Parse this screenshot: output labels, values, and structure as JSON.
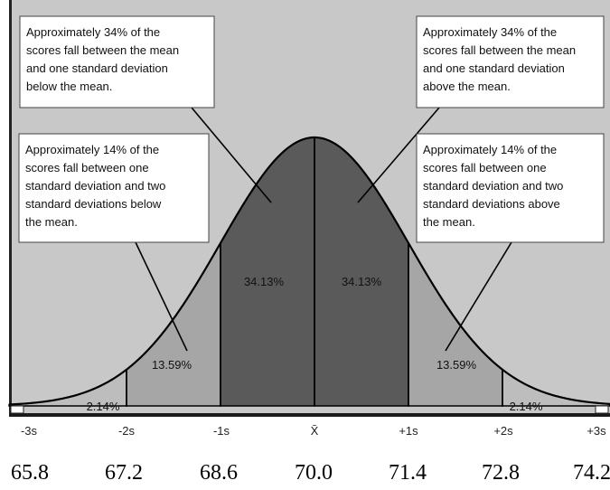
{
  "colors": {
    "panel_background": "#c8c8c8",
    "band_1s": "#5a5a5a",
    "band_2s": "#a6a6a6",
    "band_3s": "#bdbdbd",
    "curve": "#000000",
    "callout_fill": "#ffffff"
  },
  "chart_data": {
    "type": "area",
    "distribution": "normal",
    "mean": 70.0,
    "standard_deviation": 1.4,
    "xlim": [
      -3,
      3
    ],
    "x_ticks": [
      "-3s",
      "-2s",
      "-1s",
      "X̄",
      "+1s",
      "+2s",
      "+3s"
    ],
    "scores": [
      "65.8",
      "67.2",
      "68.6",
      "70.0",
      "71.4",
      "72.8",
      "74.2"
    ],
    "bands": [
      {
        "from": -3,
        "to": -2,
        "percent": 2.14,
        "label": "2.14%",
        "shade": "band_3s"
      },
      {
        "from": -2,
        "to": -1,
        "percent": 13.59,
        "label": "13.59%",
        "shade": "band_2s"
      },
      {
        "from": -1,
        "to": 0,
        "percent": 34.13,
        "label": "34.13%",
        "shade": "band_1s"
      },
      {
        "from": 0,
        "to": 1,
        "percent": 34.13,
        "label": "34.13%",
        "shade": "band_1s"
      },
      {
        "from": 1,
        "to": 2,
        "percent": 13.59,
        "label": "13.59%",
        "shade": "band_2s"
      },
      {
        "from": 2,
        "to": 3,
        "percent": 2.14,
        "label": "2.14%",
        "shade": "band_3s"
      }
    ],
    "annotations": [
      {
        "id": "left-34",
        "lines": [
          "Approximately 34% of the",
          "scores fall between the mean",
          "and one standard deviation",
          "below the mean."
        ],
        "points_to_band": 2
      },
      {
        "id": "right-34",
        "lines": [
          "Approximately 34% of the",
          "scores fall between the mean",
          "and one standard deviation",
          "above the mean."
        ],
        "points_to_band": 3
      },
      {
        "id": "left-14",
        "lines": [
          "Approximately 14% of the",
          "scores fall between one",
          "standard deviation and two",
          "standard deviations below",
          "the mean."
        ],
        "points_to_band": 1
      },
      {
        "id": "right-14",
        "lines": [
          "Approximately 14% of the",
          "scores fall between one",
          "standard deviation and two",
          "standard deviations above",
          "the mean."
        ],
        "points_to_band": 4
      }
    ]
  }
}
